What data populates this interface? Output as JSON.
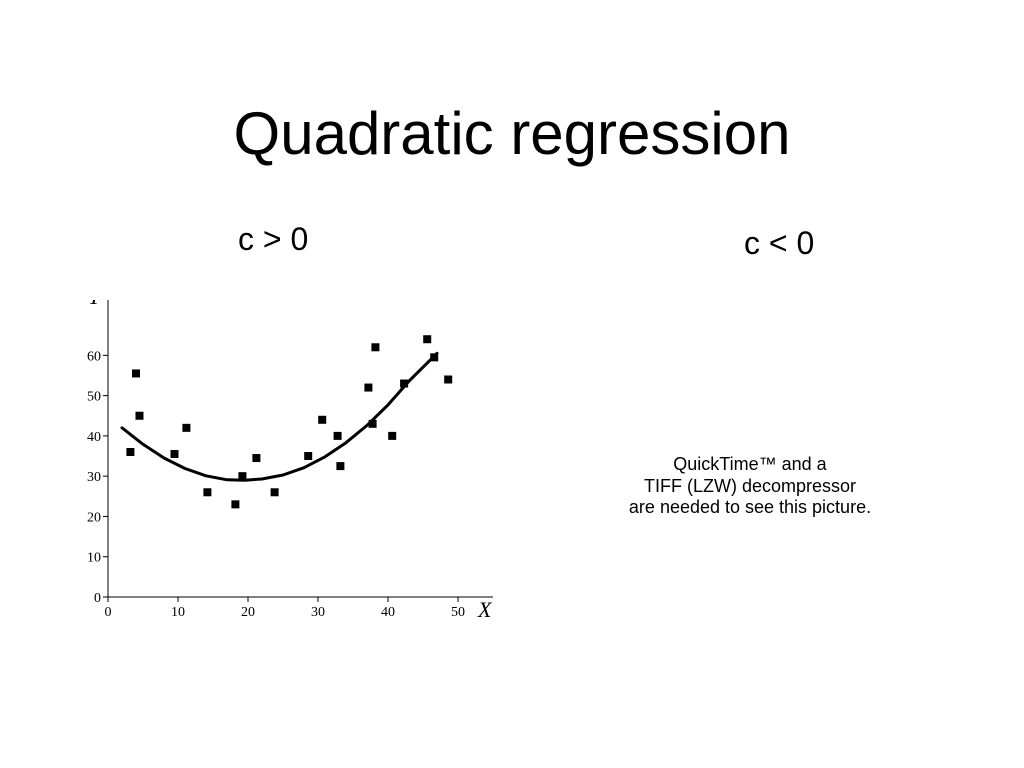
{
  "slide": {
    "title": "Quadratic regression",
    "left_heading": "c > 0",
    "right_heading": "c < 0"
  },
  "placeholder": {
    "lines": [
      "QuickTime™ and a",
      "TIFF (LZW) decompressor",
      "are needed to see this picture."
    ]
  },
  "chart_data": {
    "type": "scatter",
    "xlabel": "X",
    "ylabel": "Y",
    "xlim": [
      0,
      55
    ],
    "ylim": [
      0,
      72
    ],
    "xticks": [
      0,
      10,
      20,
      30,
      40,
      50
    ],
    "yticks": [
      0,
      10,
      20,
      30,
      40,
      50,
      60
    ],
    "grid": false,
    "points": [
      {
        "x": 3.2,
        "y": 36
      },
      {
        "x": 4.0,
        "y": 55.5
      },
      {
        "x": 4.5,
        "y": 45
      },
      {
        "x": 9.5,
        "y": 35.5
      },
      {
        "x": 11.2,
        "y": 42
      },
      {
        "x": 14.2,
        "y": 26
      },
      {
        "x": 18.2,
        "y": 23
      },
      {
        "x": 19.2,
        "y": 30
      },
      {
        "x": 21.2,
        "y": 34.5
      },
      {
        "x": 23.8,
        "y": 26
      },
      {
        "x": 28.6,
        "y": 35
      },
      {
        "x": 30.6,
        "y": 44
      },
      {
        "x": 32.8,
        "y": 40
      },
      {
        "x": 33.2,
        "y": 32.5
      },
      {
        "x": 37.2,
        "y": 52
      },
      {
        "x": 37.8,
        "y": 43
      },
      {
        "x": 38.2,
        "y": 62
      },
      {
        "x": 40.6,
        "y": 40
      },
      {
        "x": 42.3,
        "y": 53
      },
      {
        "x": 45.6,
        "y": 64
      },
      {
        "x": 46.6,
        "y": 59.5
      },
      {
        "x": 48.6,
        "y": 54
      }
    ],
    "fit": {
      "type": "quadratic",
      "x_range": [
        2,
        47
      ],
      "points": [
        {
          "x": 2,
          "y": 42
        },
        {
          "x": 5,
          "y": 37.9
        },
        {
          "x": 8,
          "y": 34.5
        },
        {
          "x": 11,
          "y": 31.9
        },
        {
          "x": 14,
          "y": 30.1
        },
        {
          "x": 17,
          "y": 29.1
        },
        {
          "x": 19.5,
          "y": 29
        },
        {
          "x": 22,
          "y": 29.3
        },
        {
          "x": 25,
          "y": 30.3
        },
        {
          "x": 28,
          "y": 32.1
        },
        {
          "x": 31,
          "y": 34.8
        },
        {
          "x": 34,
          "y": 38.3
        },
        {
          "x": 37,
          "y": 42.6
        },
        {
          "x": 40,
          "y": 47.7
        },
        {
          "x": 43,
          "y": 53.6
        },
        {
          "x": 47,
          "y": 60.5
        }
      ]
    }
  }
}
